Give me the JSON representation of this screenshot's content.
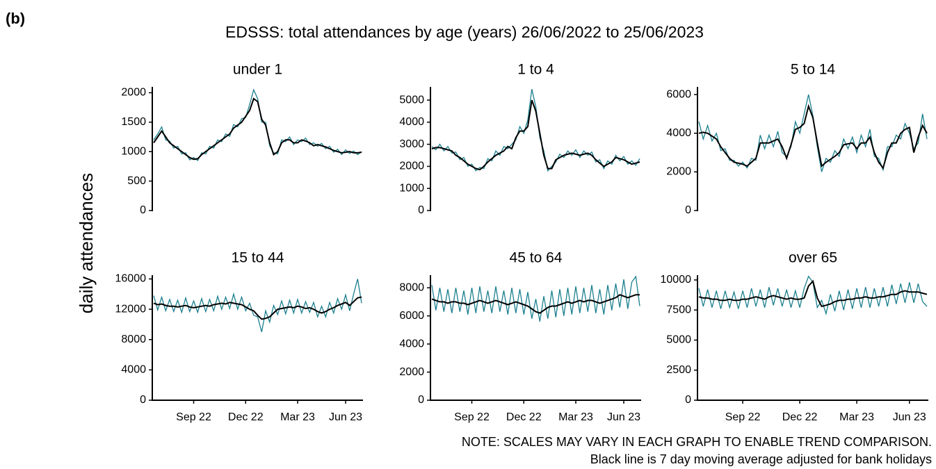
{
  "figure": {
    "label": "(b)",
    "title": "EDSSS: total attendances by age (years) 26/06/2022 to 25/06/2023",
    "ylabel": "daily attendances",
    "notes": [
      "NOTE: SCALES MAY VARY IN EACH GRAPH TO ENABLE TREND COMPARISON.",
      "Black line is 7 day moving average adjusted for bank holidays"
    ]
  },
  "chart_data": [
    {
      "type": "line",
      "title": "under 1",
      "ylim": [
        0,
        2100
      ],
      "yticks": [
        0,
        500,
        1000,
        1500,
        2000
      ],
      "series": [
        {
          "color": "#1a7f8e",
          "values": [
            1200,
            1300,
            1420,
            1200,
            1180,
            1060,
            1090,
            960,
            980,
            860,
            900,
            850,
            980,
            960,
            1090,
            1060,
            1200,
            1170,
            1300,
            1260,
            1460,
            1420,
            1560,
            1580,
            1800,
            2050,
            1900,
            1500,
            1500,
            1100,
            980,
            960,
            1200,
            1170,
            1250,
            1120,
            1200,
            1170,
            1230,
            1120,
            1150,
            1090,
            1140,
            1050,
            1090,
            990,
            1040,
            950,
            1030,
            970,
            1010,
            950,
            1000
          ]
        },
        {
          "color": "#000000",
          "values": [
            1150,
            1250,
            1350,
            1250,
            1150,
            1100,
            1050,
            1000,
            950,
            900,
            870,
            880,
            950,
            1000,
            1050,
            1100,
            1150,
            1200,
            1250,
            1300,
            1400,
            1450,
            1500,
            1600,
            1700,
            1900,
            1850,
            1550,
            1450,
            1150,
            950,
            1000,
            1150,
            1200,
            1200,
            1150,
            1150,
            1200,
            1180,
            1150,
            1100,
            1120,
            1100,
            1080,
            1050,
            1020,
            1000,
            980,
            990,
            1000,
            980,
            980,
            990
          ]
        }
      ]
    },
    {
      "type": "line",
      "title": "1 to 4",
      "ylim": [
        0,
        5600
      ],
      "yticks": [
        0,
        1000,
        2000,
        3000,
        4000,
        5000
      ],
      "series": [
        {
          "color": "#1a7f8e",
          "values": [
            2900,
            2750,
            3000,
            2700,
            2900,
            2600,
            2650,
            2300,
            2400,
            2000,
            2100,
            1800,
            1950,
            1900,
            2350,
            2250,
            2700,
            2500,
            2900,
            2800,
            3000,
            3200,
            3800,
            3500,
            4100,
            5500,
            4700,
            3300,
            2700,
            1800,
            2000,
            2200,
            2550,
            2400,
            2700,
            2500,
            2750,
            2400,
            2700,
            2500,
            2650,
            2200,
            2300,
            1900,
            2250,
            2100,
            2500,
            2250,
            2450,
            2100,
            2250,
            2050,
            2350
          ]
        },
        {
          "color": "#000000",
          "values": [
            2800,
            2850,
            2850,
            2800,
            2750,
            2700,
            2500,
            2400,
            2250,
            2100,
            2000,
            1900,
            1850,
            2000,
            2200,
            2350,
            2500,
            2600,
            2700,
            2900,
            2800,
            3300,
            3600,
            3600,
            3800,
            5000,
            4500,
            3500,
            2500,
            1900,
            1900,
            2300,
            2400,
            2500,
            2550,
            2600,
            2550,
            2500,
            2550,
            2600,
            2500,
            2300,
            2150,
            2000,
            2100,
            2200,
            2400,
            2350,
            2300,
            2200,
            2100,
            2150,
            2200
          ]
        }
      ]
    },
    {
      "type": "line",
      "title": "5 to 14",
      "ylim": [
        0,
        6400
      ],
      "yticks": [
        0,
        2000,
        4000,
        6000
      ],
      "series": [
        {
          "color": "#1a7f8e",
          "values": [
            4600,
            3700,
            4400,
            3600,
            4000,
            3100,
            3200,
            2600,
            2600,
            2300,
            2500,
            2200,
            2700,
            2600,
            3900,
            3200,
            3900,
            3300,
            4100,
            3000,
            2800,
            3300,
            4600,
            4000,
            5000,
            6000,
            4900,
            3300,
            2000,
            2700,
            2500,
            3100,
            2800,
            3700,
            3200,
            3800,
            3000,
            3900,
            3300,
            4200,
            2800,
            2700,
            2100,
            3300,
            3300,
            3900,
            3700,
            4500,
            4000,
            3200,
            3500,
            5000,
            3700
          ]
        },
        {
          "color": "#000000",
          "values": [
            4000,
            4050,
            4000,
            3850,
            3700,
            3300,
            3000,
            2700,
            2500,
            2450,
            2400,
            2300,
            2500,
            2700,
            3500,
            3500,
            3500,
            3600,
            3700,
            3300,
            2700,
            3400,
            4200,
            4300,
            4500,
            5400,
            4800,
            3500,
            2300,
            2500,
            2650,
            2800,
            3000,
            3400,
            3450,
            3500,
            3200,
            3500,
            3500,
            3800,
            3000,
            2500,
            2200,
            3000,
            3500,
            3500,
            4000,
            4200,
            4300,
            3000,
            3800,
            4400,
            4000
          ]
        }
      ]
    },
    {
      "type": "line",
      "title": "15 to 44",
      "ylim": [
        0,
        16500
      ],
      "yticks": [
        0,
        4000,
        8000,
        12000,
        16000
      ],
      "categories": [
        null,
        null,
        null,
        null,
        null,
        null,
        null,
        null,
        null,
        null,
        "Sep 22",
        null,
        null,
        null,
        null,
        null,
        null,
        null,
        null,
        null,
        null,
        null,
        null,
        "Dec 22",
        null,
        null,
        null,
        null,
        null,
        null,
        null,
        null,
        null,
        null,
        null,
        null,
        "Mar 23",
        null,
        null,
        null,
        null,
        null,
        null,
        null,
        null,
        null,
        null,
        null,
        "Jun 23",
        null,
        null,
        null,
        null
      ],
      "series": [
        {
          "color": "#1a7f8e",
          "values": [
            13800,
            11900,
            13600,
            11800,
            13300,
            11700,
            13200,
            11600,
            13500,
            11700,
            13100,
            11600,
            13400,
            11700,
            13300,
            11800,
            13700,
            12000,
            13600,
            12100,
            14000,
            12000,
            13600,
            11800,
            12800,
            11200,
            11000,
            9000,
            11800,
            10300,
            12500,
            11300,
            13100,
            11400,
            13200,
            11500,
            13300,
            11500,
            13000,
            11600,
            12900,
            11000,
            12400,
            11000,
            12900,
            11500,
            13400,
            12000,
            13900,
            11800,
            14000,
            16000,
            12800
          ]
        },
        {
          "color": "#000000",
          "values": [
            12800,
            12600,
            12700,
            12500,
            12400,
            12400,
            12300,
            12400,
            12500,
            12300,
            12200,
            12300,
            12400,
            12500,
            12400,
            12600,
            12700,
            12800,
            12700,
            12900,
            12800,
            12700,
            12600,
            12300,
            12000,
            11800,
            11200,
            10700,
            10800,
            11000,
            11500,
            12000,
            12100,
            12200,
            12300,
            12200,
            12400,
            12300,
            12100,
            12200,
            12000,
            11700,
            11500,
            11700,
            12000,
            12200,
            12500,
            12700,
            12900,
            12500,
            13000,
            13500,
            13600
          ]
        }
      ]
    },
    {
      "type": "line",
      "title": "45 to 64",
      "ylim": [
        0,
        8900
      ],
      "yticks": [
        0,
        2000,
        4000,
        6000,
        8000
      ],
      "categories": [
        null,
        null,
        null,
        null,
        null,
        null,
        null,
        null,
        null,
        null,
        "Sep 22",
        null,
        null,
        null,
        null,
        null,
        null,
        null,
        null,
        null,
        null,
        null,
        null,
        "Dec 22",
        null,
        null,
        null,
        null,
        null,
        null,
        null,
        null,
        null,
        null,
        null,
        null,
        "Mar 23",
        null,
        null,
        null,
        null,
        null,
        null,
        null,
        null,
        null,
        null,
        null,
        "Jun 23",
        null,
        null,
        null,
        null
      ],
      "series": [
        {
          "color": "#1a7f8e",
          "values": [
            8200,
            6400,
            8000,
            6300,
            7900,
            6200,
            8000,
            6300,
            7800,
            6100,
            8000,
            6200,
            8100,
            6300,
            7800,
            6200,
            8100,
            6300,
            7800,
            6100,
            8000,
            6200,
            7900,
            6100,
            7700,
            5800,
            7200,
            5600,
            7400,
            5800,
            7800,
            5900,
            7900,
            6000,
            8000,
            6100,
            8100,
            6200,
            8000,
            6300,
            8200,
            6200,
            7900,
            6100,
            8200,
            6400,
            8300,
            6600,
            8600,
            6500,
            8400,
            8800,
            6700
          ]
        },
        {
          "color": "#000000",
          "values": [
            7200,
            7100,
            7000,
            7000,
            6900,
            7000,
            7000,
            6900,
            6900,
            6800,
            6900,
            7000,
            7100,
            7000,
            6900,
            7000,
            7100,
            7000,
            6900,
            6800,
            6900,
            7000,
            6900,
            6800,
            6700,
            6500,
            6300,
            6200,
            6400,
            6600,
            6700,
            6700,
            6800,
            6900,
            7000,
            6900,
            7000,
            7100,
            7000,
            7100,
            7100,
            7000,
            6900,
            7000,
            7100,
            7200,
            7300,
            7500,
            7400,
            7300,
            7400,
            7500,
            7500
          ]
        }
      ]
    },
    {
      "type": "line",
      "title": "over 65",
      "ylim": [
        0,
        10400
      ],
      "yticks": [
        0,
        2500,
        5000,
        7500,
        10000
      ],
      "categories": [
        null,
        null,
        null,
        null,
        null,
        null,
        null,
        null,
        null,
        null,
        "Sep 22",
        null,
        null,
        null,
        null,
        null,
        null,
        null,
        null,
        null,
        null,
        null,
        null,
        "Dec 22",
        null,
        null,
        null,
        null,
        null,
        null,
        null,
        null,
        null,
        null,
        null,
        null,
        "Mar 23",
        null,
        null,
        null,
        null,
        null,
        null,
        null,
        null,
        null,
        null,
        null,
        "Jun 23",
        null,
        null,
        null,
        null
      ],
      "series": [
        {
          "color": "#1a7f8e",
          "values": [
            9300,
            7800,
            9200,
            7700,
            9100,
            7600,
            9100,
            7700,
            9000,
            7600,
            9100,
            7700,
            9300,
            7800,
            9200,
            7700,
            9400,
            7900,
            9300,
            7800,
            9200,
            7700,
            9100,
            7700,
            9300,
            10300,
            9800,
            7700,
            8300,
            7200,
            8800,
            7400,
            9100,
            7500,
            9200,
            7600,
            9300,
            7700,
            9400,
            7700,
            9300,
            7800,
            9400,
            7800,
            9600,
            8000,
            9700,
            8100,
            9800,
            8100,
            9700,
            8200,
            7800
          ]
        },
        {
          "color": "#000000",
          "values": [
            8600,
            8500,
            8500,
            8400,
            8400,
            8300,
            8300,
            8400,
            8300,
            8300,
            8400,
            8400,
            8500,
            8600,
            8500,
            8400,
            8600,
            8700,
            8600,
            8500,
            8400,
            8500,
            8400,
            8400,
            8500,
            9500,
            9900,
            8500,
            7800,
            7900,
            8000,
            8200,
            8300,
            8300,
            8400,
            8400,
            8500,
            8500,
            8600,
            8500,
            8500,
            8600,
            8600,
            8700,
            8800,
            8800,
            9000,
            9100,
            9000,
            9000,
            9000,
            8900,
            8800
          ]
        }
      ]
    }
  ]
}
